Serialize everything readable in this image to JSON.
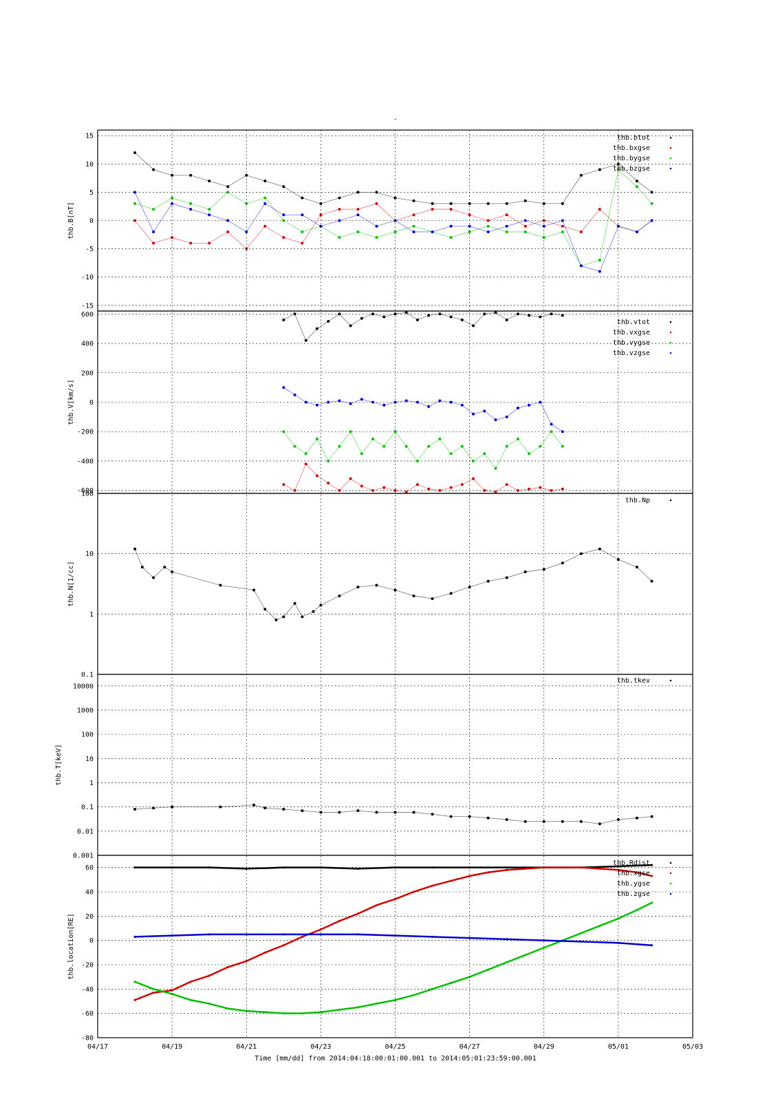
{
  "figure": {
    "title": "-",
    "x_axis_title": "Time [mm/dd]  from 2014:04:18:00:01:00.001  to  2014:05:01:23:59:00.001",
    "x_tick_labels": [
      "04/17",
      "04/19",
      "04/21",
      "04/23",
      "04/25",
      "04/27",
      "04/29",
      "05/01",
      "05/03"
    ]
  },
  "colors": {
    "black": "#000000",
    "red": "#d00000",
    "green": "#00c000",
    "blue": "#0000d0"
  },
  "chart_data": [
    {
      "type": "scatter",
      "ylabel": "thb.B[nT]",
      "ylim": [
        -16,
        16
      ],
      "yticks": [
        -15,
        -10,
        -5,
        0,
        5,
        10,
        15
      ],
      "ytick_labels": [
        "-15",
        "-10",
        "-5",
        "0",
        "5",
        "10",
        "15"
      ],
      "grid": true,
      "legend_placement": "top-right",
      "series": [
        {
          "name": "thb.btot",
          "color": "black",
          "x": [
            18.0,
            18.5,
            19.0,
            19.5,
            20.0,
            20.5,
            21.0,
            21.5,
            22.0,
            22.5,
            23.0,
            23.5,
            24.0,
            24.5,
            25.0,
            25.5,
            26.0,
            26.5,
            27.0,
            27.5,
            28.0,
            28.5,
            29.0,
            29.5,
            30.0,
            30.5,
            31.0,
            31.5,
            31.9
          ],
          "y": [
            12,
            9,
            8,
            8,
            7,
            6,
            8,
            7,
            6,
            4,
            3,
            4,
            5,
            5,
            4,
            3.5,
            3,
            3,
            3,
            3,
            3,
            3.5,
            3,
            3,
            8,
            9,
            10,
            7,
            5
          ]
        },
        {
          "name": "thb.bxgse",
          "color": "red",
          "x": [
            18.0,
            18.5,
            19.0,
            19.5,
            20.0,
            20.5,
            21.0,
            21.5,
            22.0,
            22.5,
            23.0,
            23.5,
            24.0,
            24.5,
            25.0,
            25.5,
            26.0,
            26.5,
            27.0,
            27.5,
            28.0,
            28.5,
            29.0,
            29.5,
            30.0,
            30.5,
            31.0,
            31.5,
            31.9
          ],
          "y": [
            0,
            -4,
            -3,
            -4,
            -4,
            -2,
            -5,
            -1,
            -3,
            -4,
            1,
            2,
            2,
            3,
            0,
            1,
            2,
            2,
            1,
            0,
            1,
            -1,
            0,
            -1,
            -2,
            2,
            -1,
            -2,
            0
          ]
        },
        {
          "name": "thb.bygse",
          "color": "green",
          "x": [
            18.0,
            18.5,
            19.0,
            19.5,
            20.0,
            20.5,
            21.0,
            21.5,
            22.0,
            22.5,
            23.0,
            23.5,
            24.0,
            24.5,
            25.0,
            25.5,
            26.0,
            26.5,
            27.0,
            27.5,
            28.0,
            28.5,
            29.0,
            29.5,
            30.0,
            30.5,
            31.0,
            31.5,
            31.9
          ],
          "y": [
            3,
            2,
            4,
            3,
            2,
            5,
            3,
            4,
            0,
            -2,
            -1,
            -3,
            -2,
            -3,
            -2,
            -1,
            -2,
            -3,
            -2,
            -1,
            -2,
            -2,
            -3,
            -2,
            -8,
            -7,
            9,
            6,
            3
          ]
        },
        {
          "name": "thb.bzgse",
          "color": "blue",
          "x": [
            18.0,
            18.5,
            19.0,
            19.5,
            20.0,
            20.5,
            21.0,
            21.5,
            22.0,
            22.5,
            23.0,
            23.5,
            24.0,
            24.5,
            25.0,
            25.5,
            26.0,
            26.5,
            27.0,
            27.5,
            28.0,
            28.5,
            29.0,
            29.5,
            30.0,
            30.5,
            31.0,
            31.5,
            31.9
          ],
          "y": [
            5,
            -2,
            3,
            2,
            1,
            0,
            -2,
            3,
            1,
            1,
            -1,
            0,
            1,
            -1,
            0,
            -2,
            -2,
            -1,
            -1,
            -2,
            -1,
            0,
            -1,
            0,
            -8,
            -9,
            -1,
            -2,
            0
          ]
        }
      ]
    },
    {
      "type": "scatter",
      "ylabel": "thb.V[km/s]",
      "ylim": [
        -620,
        620
      ],
      "yticks": [
        -600,
        -400,
        -200,
        0,
        200,
        400,
        600
      ],
      "ytick_labels": [
        "-600",
        "-400",
        "-200",
        "0",
        "200",
        "400",
        "600"
      ],
      "grid": true,
      "legend_placement": "top-right",
      "series": [
        {
          "name": "thb.vtot",
          "color": "black",
          "x": [
            22.0,
            22.3,
            22.6,
            22.9,
            23.2,
            23.5,
            23.8,
            24.1,
            24.4,
            24.7,
            25.0,
            25.3,
            25.6,
            25.9,
            26.2,
            26.5,
            26.8,
            27.1,
            27.4,
            27.7,
            28.0,
            28.3,
            28.6,
            28.9,
            29.2,
            29.5
          ],
          "y": [
            560,
            600,
            420,
            500,
            550,
            600,
            520,
            570,
            600,
            580,
            600,
            610,
            560,
            590,
            600,
            580,
            560,
            520,
            600,
            610,
            560,
            600,
            590,
            580,
            600,
            590
          ]
        },
        {
          "name": "thb.vxgse",
          "color": "red",
          "x": [
            22.0,
            22.3,
            22.6,
            22.9,
            23.2,
            23.5,
            23.8,
            24.1,
            24.4,
            24.7,
            25.0,
            25.3,
            25.6,
            25.9,
            26.2,
            26.5,
            26.8,
            27.1,
            27.4,
            27.7,
            28.0,
            28.3,
            28.6,
            28.9,
            29.2,
            29.5
          ],
          "y": [
            -560,
            -600,
            -420,
            -500,
            -550,
            -600,
            -520,
            -570,
            -600,
            -580,
            -600,
            -610,
            -560,
            -590,
            -600,
            -580,
            -560,
            -520,
            -600,
            -610,
            -560,
            -600,
            -590,
            -580,
            -600,
            -590
          ]
        },
        {
          "name": "thb.vygse",
          "color": "green",
          "x": [
            22.0,
            22.3,
            22.6,
            22.9,
            23.2,
            23.5,
            23.8,
            24.1,
            24.4,
            24.7,
            25.0,
            25.3,
            25.6,
            25.9,
            26.2,
            26.5,
            26.8,
            27.1,
            27.4,
            27.7,
            28.0,
            28.3,
            28.6,
            28.9,
            29.2,
            29.5
          ],
          "y": [
            -200,
            -300,
            -350,
            -250,
            -400,
            -300,
            -200,
            -350,
            -250,
            -300,
            -200,
            -300,
            -400,
            -300,
            -250,
            -350,
            -300,
            -400,
            -350,
            -450,
            -300,
            -250,
            -350,
            -300,
            -200,
            -300
          ]
        },
        {
          "name": "thb.vzgse",
          "color": "blue",
          "x": [
            22.0,
            22.3,
            22.6,
            22.9,
            23.2,
            23.5,
            23.8,
            24.1,
            24.4,
            24.7,
            25.0,
            25.3,
            25.6,
            25.9,
            26.2,
            26.5,
            26.8,
            27.1,
            27.4,
            27.7,
            28.0,
            28.3,
            28.6,
            28.9,
            29.2,
            29.5
          ],
          "y": [
            100,
            50,
            0,
            -20,
            0,
            10,
            -10,
            20,
            0,
            -20,
            0,
            10,
            0,
            -30,
            10,
            0,
            -20,
            -80,
            -60,
            -120,
            -100,
            -40,
            -20,
            0,
            -150,
            -200
          ]
        }
      ]
    },
    {
      "type": "scatter",
      "ylabel": "thb.N[1/cc]",
      "yscale": "log",
      "ylim": [
        0.1,
        100
      ],
      "yticks": [
        0.1,
        1,
        10,
        100
      ],
      "ytick_labels": [
        "0.1",
        "1",
        "10",
        "100"
      ],
      "grid": true,
      "legend_placement": "top-right",
      "series": [
        {
          "name": "thb.Np",
          "color": "black",
          "x": [
            18.0,
            18.2,
            18.5,
            18.8,
            19.0,
            20.3,
            21.2,
            21.5,
            21.8,
            22.0,
            22.3,
            22.5,
            22.8,
            23.0,
            23.5,
            24.0,
            24.5,
            25.0,
            25.5,
            26.0,
            26.5,
            27.0,
            27.5,
            28.0,
            28.5,
            29.0,
            29.5,
            30.0,
            30.5,
            31.0,
            31.5,
            31.9
          ],
          "y": [
            12,
            6,
            4,
            6,
            5,
            3,
            2.5,
            1.2,
            0.8,
            0.9,
            1.5,
            0.9,
            1.1,
            1.4,
            2,
            2.8,
            3,
            2.5,
            2,
            1.8,
            2.2,
            2.8,
            3.5,
            4,
            5,
            5.5,
            7,
            10,
            12,
            8,
            6,
            3.5
          ]
        }
      ]
    },
    {
      "type": "scatter",
      "ylabel": "thb.T[keV]",
      "yscale": "log",
      "ylim": [
        0.001,
        30000
      ],
      "yticks": [
        0.001,
        0.01,
        0.1,
        1,
        10,
        100,
        1000,
        10000
      ],
      "ytick_labels": [
        "0.001",
        "0.01",
        "0.1",
        "1",
        "10",
        "100",
        "1000",
        "10000"
      ],
      "grid": true,
      "legend_placement": "top-right",
      "series": [
        {
          "name": "thb.tkev",
          "color": "black",
          "x": [
            18.0,
            18.5,
            19.0,
            20.3,
            21.2,
            21.5,
            22.0,
            22.5,
            23.0,
            23.5,
            24.0,
            24.5,
            25.0,
            25.5,
            26.0,
            26.5,
            27.0,
            27.5,
            28.0,
            28.5,
            29.0,
            29.5,
            30.0,
            30.5,
            31.0,
            31.5,
            31.9
          ],
          "y": [
            0.08,
            0.09,
            0.1,
            0.1,
            0.12,
            0.09,
            0.08,
            0.07,
            0.06,
            0.06,
            0.07,
            0.06,
            0.06,
            0.06,
            0.05,
            0.04,
            0.04,
            0.035,
            0.03,
            0.025,
            0.025,
            0.025,
            0.025,
            0.02,
            0.03,
            0.035,
            0.04
          ]
        }
      ]
    },
    {
      "type": "line",
      "ylabel": "thb.location[RE]",
      "ylim": [
        -80,
        70
      ],
      "yticks": [
        -80,
        -60,
        -40,
        -20,
        0,
        20,
        40,
        60
      ],
      "ytick_labels": [
        "-80",
        "-60",
        "-40",
        "-20",
        "0",
        "20",
        "40",
        "60"
      ],
      "grid": true,
      "legend_placement": "top-right",
      "series": [
        {
          "name": "thb.Rdist",
          "color": "black",
          "x": [
            18,
            19,
            20,
            21,
            22,
            23,
            24,
            25,
            26,
            27,
            28,
            29,
            30,
            31,
            31.9
          ],
          "y": [
            60,
            60,
            60,
            59,
            60,
            60,
            59,
            60,
            60,
            60,
            60,
            60,
            60,
            61,
            62
          ]
        },
        {
          "name": "thb.xgse",
          "color": "red",
          "x": [
            18,
            18.5,
            19,
            19.5,
            20,
            20.5,
            21,
            21.5,
            22,
            22.5,
            23,
            23.5,
            24,
            24.5,
            25,
            25.5,
            26,
            26.5,
            27,
            27.5,
            28,
            28.5,
            29,
            29.5,
            30,
            30.5,
            31,
            31.5,
            31.9
          ],
          "y": [
            -49,
            -43,
            -41,
            -34,
            -29,
            -22,
            -17,
            -10,
            -4,
            3,
            9,
            16,
            22,
            29,
            34,
            40,
            45,
            49,
            53,
            56,
            58,
            59,
            60,
            60,
            60,
            59,
            58,
            56,
            53
          ]
        },
        {
          "name": "thb.ygse",
          "color": "green",
          "x": [
            18,
            18.5,
            19,
            19.5,
            20,
            20.5,
            21,
            21.5,
            22,
            22.5,
            23,
            23.5,
            24,
            24.5,
            25,
            25.5,
            26,
            26.5,
            27,
            27.5,
            28,
            28.5,
            29,
            29.5,
            30,
            30.5,
            31,
            31.5,
            31.9
          ],
          "y": [
            -34,
            -40,
            -44,
            -49,
            -52,
            -56,
            -58,
            -59,
            -60,
            -60,
            -59,
            -57,
            -55,
            -52,
            -49,
            -45,
            -40,
            -35,
            -30,
            -24,
            -18,
            -12,
            -6,
            0,
            6,
            12,
            18,
            25,
            31
          ]
        },
        {
          "name": "thb.zgse",
          "color": "blue",
          "x": [
            18,
            19,
            20,
            21,
            22,
            23,
            24,
            25,
            26,
            27,
            28,
            29,
            30,
            31,
            31.9
          ],
          "y": [
            3,
            4,
            5,
            5,
            5,
            5,
            5,
            4,
            3,
            2,
            1,
            0,
            -1,
            -2,
            -4
          ]
        }
      ]
    }
  ]
}
